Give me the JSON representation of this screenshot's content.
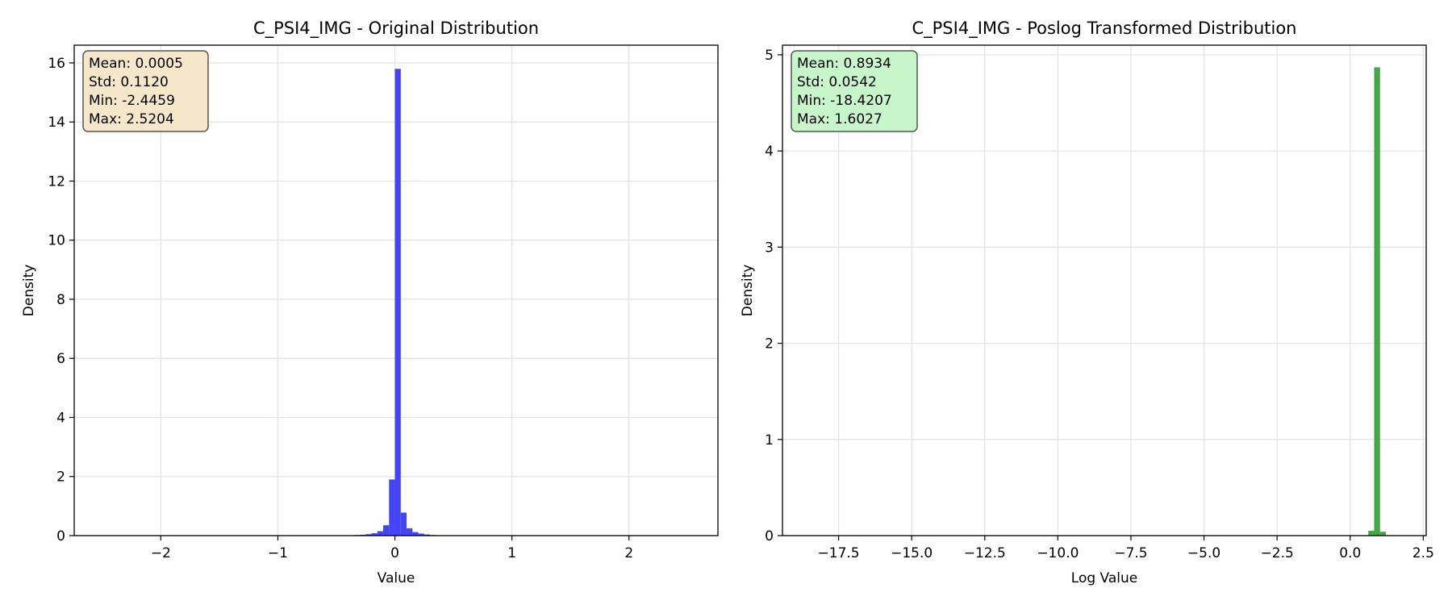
{
  "chart_data": [
    {
      "type": "bar",
      "title": "C_PSI4_IMG - Original Distribution",
      "xlabel": "Value",
      "ylabel": "Density",
      "xlim": [
        -2.74,
        2.76
      ],
      "ylim": [
        0,
        16.6
      ],
      "xticks": [
        -2,
        -1,
        0,
        1,
        2
      ],
      "xtick_labels": [
        "−2",
        "−1",
        "0",
        "1",
        "2"
      ],
      "yticks": [
        0,
        2,
        4,
        6,
        8,
        10,
        12,
        14,
        16
      ],
      "ytick_labels": [
        "0",
        "2",
        "4",
        "6",
        "8",
        "10",
        "12",
        "14",
        "16"
      ],
      "grid": true,
      "color": "#4444f5",
      "stats_box_color": "#f5e6c8",
      "stats_text": [
        "Mean: 0.0005",
        "Std: 0.1120",
        "Min: -2.4459",
        "Max: 2.5204"
      ],
      "legend": "none",
      "bins": [
        {
          "x0": -0.4,
          "x1": -0.35,
          "value": 0.01
        },
        {
          "x0": -0.35,
          "x1": -0.3,
          "value": 0.02
        },
        {
          "x0": -0.3,
          "x1": -0.25,
          "value": 0.03
        },
        {
          "x0": -0.25,
          "x1": -0.2,
          "value": 0.05
        },
        {
          "x0": -0.2,
          "x1": -0.15,
          "value": 0.08
        },
        {
          "x0": -0.15,
          "x1": -0.1,
          "value": 0.15
        },
        {
          "x0": -0.1,
          "x1": -0.05,
          "value": 0.35
        },
        {
          "x0": -0.05,
          "x1": 0.0,
          "value": 1.9
        },
        {
          "x0": 0.0,
          "x1": 0.05,
          "value": 15.8
        },
        {
          "x0": 0.05,
          "x1": 0.1,
          "value": 0.78
        },
        {
          "x0": 0.1,
          "x1": 0.15,
          "value": 0.25
        },
        {
          "x0": 0.15,
          "x1": 0.2,
          "value": 0.12
        },
        {
          "x0": 0.2,
          "x1": 0.25,
          "value": 0.07
        },
        {
          "x0": 0.25,
          "x1": 0.3,
          "value": 0.04
        },
        {
          "x0": 0.3,
          "x1": 0.35,
          "value": 0.02
        },
        {
          "x0": 0.35,
          "x1": 0.4,
          "value": 0.01
        }
      ]
    },
    {
      "type": "bar",
      "title": "C_PSI4_IMG - Poslog Transformed Distribution",
      "xlabel": "Log Value",
      "ylabel": "Density",
      "xlim": [
        -19.42,
        2.6
      ],
      "ylim": [
        0,
        5.1
      ],
      "xticks": [
        -17.5,
        -15.0,
        -12.5,
        -10.0,
        -7.5,
        -5.0,
        -2.5,
        0.0,
        2.5
      ],
      "xtick_labels": [
        "−17.5",
        "−15.0",
        "−12.5",
        "−10.0",
        "−7.5",
        "−5.0",
        "−2.5",
        "0.0",
        "2.5"
      ],
      "yticks": [
        0,
        1,
        2,
        3,
        4,
        5
      ],
      "ytick_labels": [
        "0",
        "1",
        "2",
        "3",
        "4",
        "5"
      ],
      "grid": true,
      "color": "#44a644",
      "stats_box_color": "#c5f5c8",
      "stats_text": [
        "Mean: 0.8934",
        "Std: 0.0542",
        "Min: -18.4207",
        "Max: 1.6027"
      ],
      "legend": "none",
      "bins": [
        {
          "x0": 0.62,
          "x1": 0.82,
          "value": 0.05
        },
        {
          "x0": 0.82,
          "x1": 1.02,
          "value": 4.87
        },
        {
          "x0": 1.02,
          "x1": 1.22,
          "value": 0.04
        }
      ]
    }
  ]
}
